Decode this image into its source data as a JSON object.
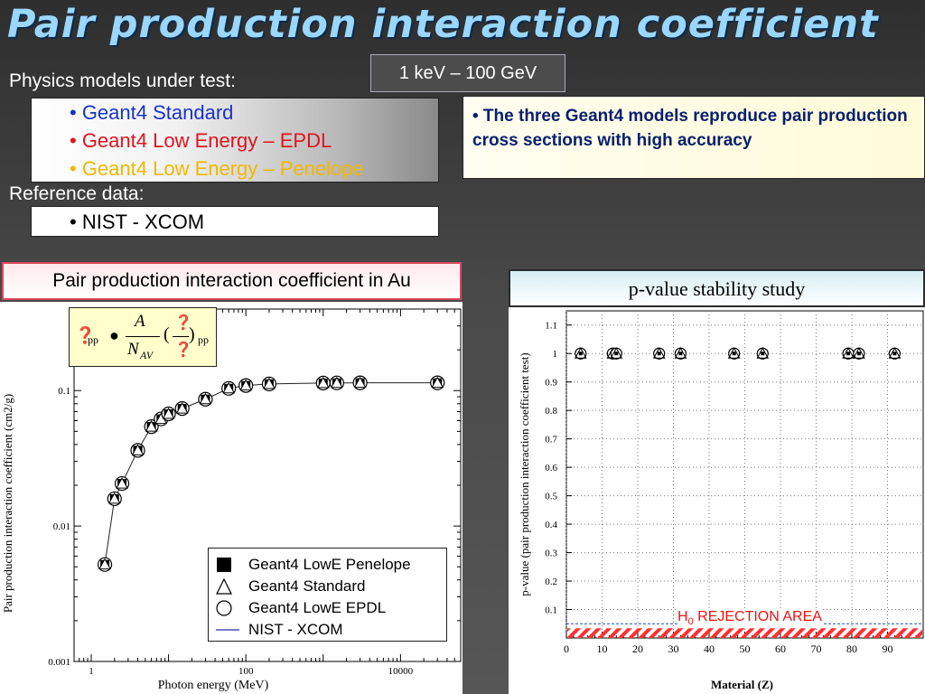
{
  "slide": {
    "title": "Pair production interaction coefficient",
    "energy_range": "1 keV – 100 GeV",
    "models_label": "Physics models under test:",
    "models": [
      {
        "text": "• Geant4 Standard",
        "color": "#1733c9"
      },
      {
        "text": "• Geant4 Low Energy – EPDL",
        "color": "#e0141e"
      },
      {
        "text": "• Geant4 Low Energy – Penelope",
        "color": "#f0b800"
      }
    ],
    "reference_label": "Reference data:",
    "reference": "• NIST - XCOM",
    "note": "• The three Geant4 models reproduce pair production cross sections with high accuracy",
    "left_plot_title": "Pair production interaction coefficient in Au",
    "right_plot_title": "p-value stability study"
  },
  "formula": {
    "lhs_symbol": "❓",
    "lhs_sub": "pp",
    "operator": "●",
    "numer": "A",
    "denom": "N",
    "denom_sub": "AV",
    "paren_open": "(",
    "paren_close": ")",
    "frac_top": "❓",
    "frac_bottom": "❓",
    "rhs_sub": "pp"
  },
  "chart_data": [
    {
      "type": "scatter",
      "xscale": "log",
      "yscale": "log",
      "xlabel": "Photon energy (MeV)",
      "ylabel": "Pair production interaction coefficient (cm2/g)",
      "xlim": [
        0.6,
        60000
      ],
      "ylim": [
        0.001,
        0.4
      ],
      "x_ticks": [
        {
          "v": 1,
          "label": "1"
        },
        {
          "v": 100,
          "label": "100"
        },
        {
          "v": 10000,
          "label": "10000"
        }
      ],
      "y_ticks": [
        {
          "v": 0.001,
          "label": "0.001"
        },
        {
          "v": 0.01,
          "label": "0.01"
        },
        {
          "v": 0.1,
          "label": "0.1"
        }
      ],
      "legend": [
        "Geant4 LowE Penelope",
        "Geant4 Standard",
        "Geant4 LowE EPDL",
        "NIST - XCOM"
      ],
      "legend_position": "bottom-right",
      "x": [
        1.5,
        2,
        2.5,
        4,
        6,
        8,
        10,
        15,
        30,
        60,
        100,
        200,
        1000,
        1500,
        3000,
        30000
      ],
      "series": [
        {
          "name": "NIST - XCOM",
          "values": [
            0.0052,
            0.0159,
            0.0206,
            0.0362,
            0.0542,
            0.0618,
            0.0673,
            0.0737,
            0.0864,
            0.1038,
            0.109,
            0.112,
            0.1137,
            0.114,
            0.1141,
            0.1141
          ]
        }
      ]
    },
    {
      "type": "scatter",
      "xlabel": "Material (Z)",
      "ylabel": "p-value (pair production interaction coefficient test)",
      "xlim": [
        0,
        100
      ],
      "ylim": [
        0,
        1.15
      ],
      "x_ticks": [
        0,
        10,
        20,
        30,
        40,
        50,
        60,
        70,
        80,
        90
      ],
      "y_ticks": [
        0.1,
        0.2,
        0.3,
        0.4,
        0.5,
        0.6,
        0.7,
        0.8,
        0.9,
        1,
        1.1
      ],
      "rejection_threshold": 0.05,
      "rejection_label_main": "H",
      "rejection_label_sub": "0",
      "rejection_label_rest": " REJECTION AREA",
      "x": [
        4,
        13,
        14,
        26,
        32,
        47,
        55,
        79,
        82,
        92
      ],
      "values": [
        1,
        1,
        1,
        1,
        1,
        1,
        1,
        1,
        1,
        1
      ]
    }
  ]
}
